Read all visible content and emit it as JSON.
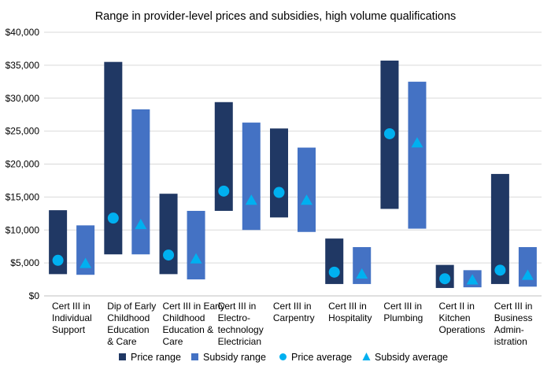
{
  "chart_data": {
    "type": "bar",
    "title": "Range in provider-level prices and subsidies, high volume qualifications",
    "ylim": [
      0,
      40000
    ],
    "yticks": [
      0,
      5000,
      10000,
      15000,
      20000,
      25000,
      30000,
      35000,
      40000
    ],
    "ytick_labels": [
      "$0",
      "$5,000",
      "$10,000",
      "$15,000",
      "$20,000",
      "$25,000",
      "$30,000",
      "$35,000",
      "$40,000"
    ],
    "grid": true,
    "legend_position": "bottom",
    "categories": [
      [
        "Cert III in",
        "Individual",
        "Support"
      ],
      [
        "Dip of Early",
        "Childhood",
        "Education",
        "& Care"
      ],
      [
        "Cert III in Early",
        "Childhood",
        "Education &",
        "Care"
      ],
      [
        "Cert III in",
        "Electro-",
        "technology",
        "Electrician"
      ],
      [
        "Cert III in",
        "Carpentry"
      ],
      [
        "Cert III in",
        "Hospitality"
      ],
      [
        "Cert III in",
        "Plumbing"
      ],
      [
        "Cert II in",
        "Kitchen",
        "Operations"
      ],
      [
        "Cert III in",
        "Business",
        "Admin-",
        "istration"
      ]
    ],
    "colors": {
      "price_range": "#203864",
      "subsidy_range": "#4472C4",
      "price_average": "#00B0F0",
      "subsidy_average": "#00B0F0"
    },
    "series": [
      {
        "name": "Price range",
        "type": "range",
        "low": [
          3300,
          6300,
          3300,
          12900,
          11900,
          1800,
          13200,
          1200,
          1800
        ],
        "high": [
          13000,
          35500,
          15500,
          29400,
          25400,
          8700,
          35700,
          4700,
          18500
        ]
      },
      {
        "name": "Subsidy range",
        "type": "range",
        "low": [
          3200,
          6300,
          2500,
          10000,
          9700,
          1800,
          10200,
          1300,
          1400
        ],
        "high": [
          10700,
          28300,
          12900,
          26300,
          22500,
          7400,
          32500,
          3900,
          7400
        ]
      },
      {
        "name": "Price average",
        "type": "marker",
        "marker": "circle",
        "values": [
          5400,
          11800,
          6200,
          15900,
          15700,
          3600,
          24600,
          2600,
          3900
        ]
      },
      {
        "name": "Subsidy average",
        "type": "marker",
        "marker": "triangle",
        "values": [
          4900,
          10800,
          5600,
          14500,
          14500,
          3300,
          23200,
          2400,
          3100
        ]
      }
    ]
  }
}
